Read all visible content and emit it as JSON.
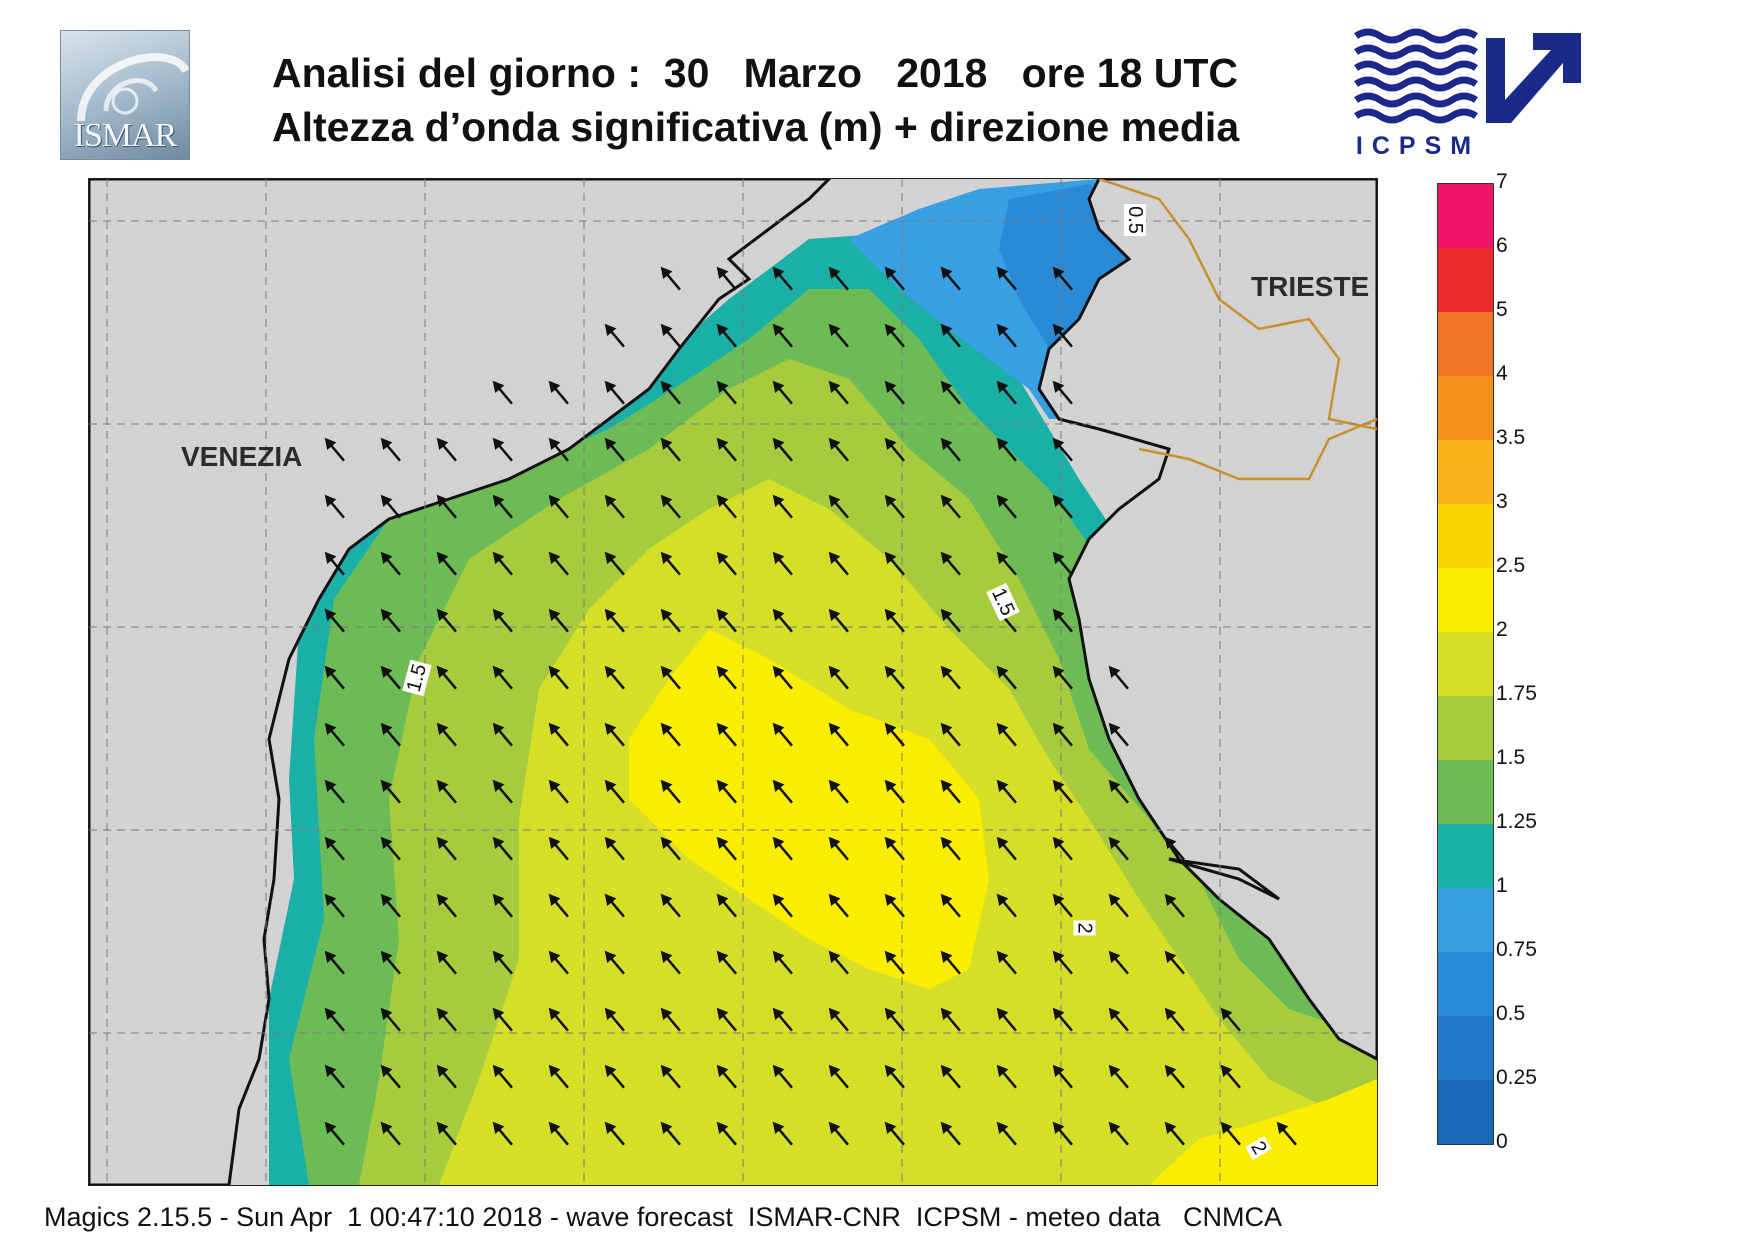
{
  "header": {
    "title_line1": "Analisi del giorno :  30   Marzo   2018   ore 18 UTC",
    "title_line2": "Altezza d’onda significativa (m) + direzione media",
    "logo_left_text": "ISMAR",
    "logo_right_text": "ICPSM"
  },
  "map": {
    "places": [
      {
        "name": "VENEZIA"
      },
      {
        "name": "TRIESTE"
      }
    ],
    "contour_labels": [
      "0.5",
      "1.5",
      "1.5",
      "2",
      "2"
    ],
    "colors": {
      "land": "#d2d2d2",
      "arrow": "#111111",
      "coast": "#111111",
      "border": "#c8902e"
    },
    "mean_direction": "NNW",
    "icon": "direction-arrow-icon"
  },
  "legend": {
    "title": "",
    "levels": [
      "0",
      "0.25",
      "0.5",
      "0.75",
      "1",
      "1.25",
      "1.5",
      "1.75",
      "2",
      "2.5",
      "3",
      "3.5",
      "4",
      "5",
      "6",
      "7"
    ],
    "colors": [
      "#1a68b8",
      "#2179c8",
      "#2a8ad6",
      "#38a0e2",
      "#1ab0a8",
      "#6dbb55",
      "#a6cc3e",
      "#d6df28",
      "#fbed00",
      "#fbd500",
      "#fab21c",
      "#f8901e",
      "#f07428",
      "#ea2b2b",
      "#ee1566"
    ]
  },
  "footer": {
    "text": "Magics 2.15.5 - Sun Apr  1 00:47:10 2018 - wave forecast  ISMAR-CNR  ICPSM - meteo data   CNMCA"
  }
}
